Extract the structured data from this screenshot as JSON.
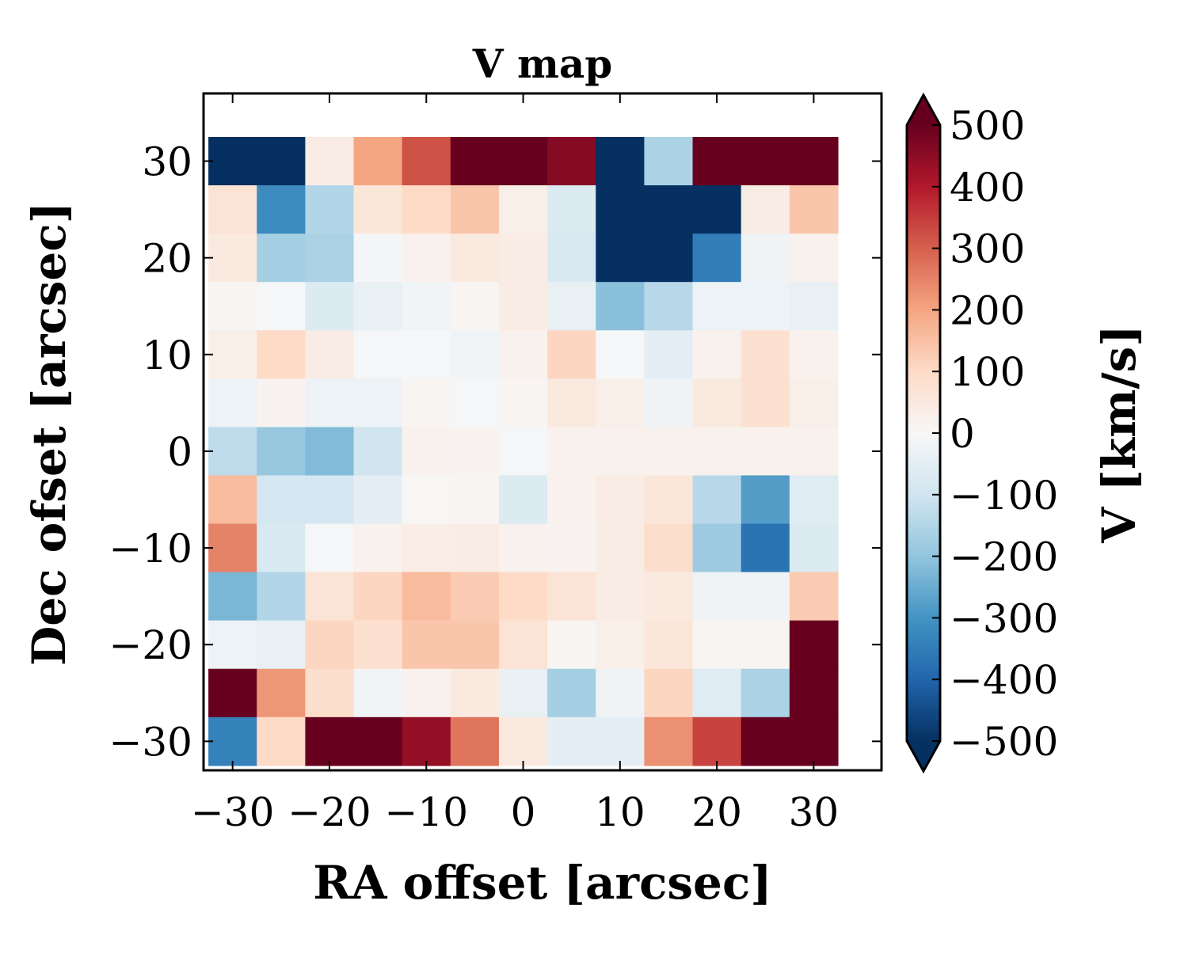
{
  "chart_data": {
    "type": "heatmap",
    "title": "V map",
    "xlabel": "RA offset [arcsec]",
    "ylabel": "Dec ofset [arcsec]",
    "colorbar_label": "V [km/s]",
    "colormap": "RdBu_r",
    "vmin": -500,
    "vmax": 500,
    "xlim": [
      -33,
      37
    ],
    "ylim": [
      -33,
      37
    ],
    "x_centers": [
      -30,
      -25,
      -20,
      -15,
      -10,
      -5,
      0,
      5,
      10,
      15,
      20,
      25,
      30
    ],
    "y_centers": [
      30,
      25,
      20,
      15,
      10,
      5,
      0,
      -5,
      -10,
      -15,
      -20,
      -25,
      -30
    ],
    "x_ticks": [
      -30,
      -20,
      -10,
      0,
      10,
      20,
      30
    ],
    "x_tick_labels": [
      "−30",
      "−20",
      "−10",
      "0",
      "10",
      "20",
      "30"
    ],
    "y_ticks": [
      30,
      20,
      10,
      0,
      -10,
      -20,
      -30
    ],
    "y_tick_labels": [
      "30",
      "20",
      "10",
      "0",
      "−10",
      "−20",
      "−30"
    ],
    "colorbar_ticks": [
      500,
      400,
      300,
      200,
      100,
      0,
      -100,
      -200,
      -300,
      -400,
      -500
    ],
    "colorbar_tick_labels": [
      "500",
      "400",
      "300",
      "200",
      "100",
      "0",
      "−100",
      "−200",
      "−300",
      "−400",
      "−500"
    ],
    "values": [
      [
        -520,
        -520,
        40,
        200,
        320,
        520,
        520,
        460,
        -520,
        -160,
        520,
        520,
        520
      ],
      [
        70,
        -320,
        -150,
        60,
        100,
        140,
        30,
        -70,
        -520,
        -520,
        -520,
        40,
        140
      ],
      [
        50,
        -170,
        -160,
        -10,
        20,
        50,
        40,
        -80,
        -520,
        -520,
        -350,
        -20,
        20
      ],
      [
        10,
        -5,
        -70,
        -40,
        -15,
        10,
        40,
        -40,
        -210,
        -140,
        -30,
        -30,
        -40
      ],
      [
        30,
        100,
        40,
        -5,
        -5,
        -15,
        20,
        110,
        -5,
        -50,
        20,
        80,
        20
      ],
      [
        -30,
        15,
        -30,
        -30,
        10,
        -5,
        10,
        50,
        30,
        -20,
        50,
        80,
        30
      ],
      [
        -130,
        -190,
        -220,
        -100,
        20,
        15,
        -5,
        20,
        20,
        20,
        20,
        20,
        20
      ],
      [
        160,
        -90,
        -90,
        -50,
        5,
        10,
        -70,
        20,
        40,
        60,
        -140,
        -280,
        -60
      ],
      [
        250,
        -80,
        -5,
        20,
        35,
        40,
        20,
        15,
        40,
        90,
        -180,
        -370,
        -70
      ],
      [
        -230,
        -150,
        70,
        110,
        160,
        130,
        100,
        70,
        40,
        50,
        -20,
        -20,
        130
      ],
      [
        -30,
        -40,
        110,
        80,
        140,
        140,
        70,
        10,
        30,
        60,
        10,
        10,
        520
      ],
      [
        520,
        220,
        90,
        -15,
        20,
        50,
        -40,
        -170,
        -20,
        110,
        -60,
        -160,
        520
      ],
      [
        -340,
        100,
        520,
        520,
        440,
        270,
        50,
        -50,
        -50,
        230,
        340,
        520,
        520
      ]
    ]
  }
}
